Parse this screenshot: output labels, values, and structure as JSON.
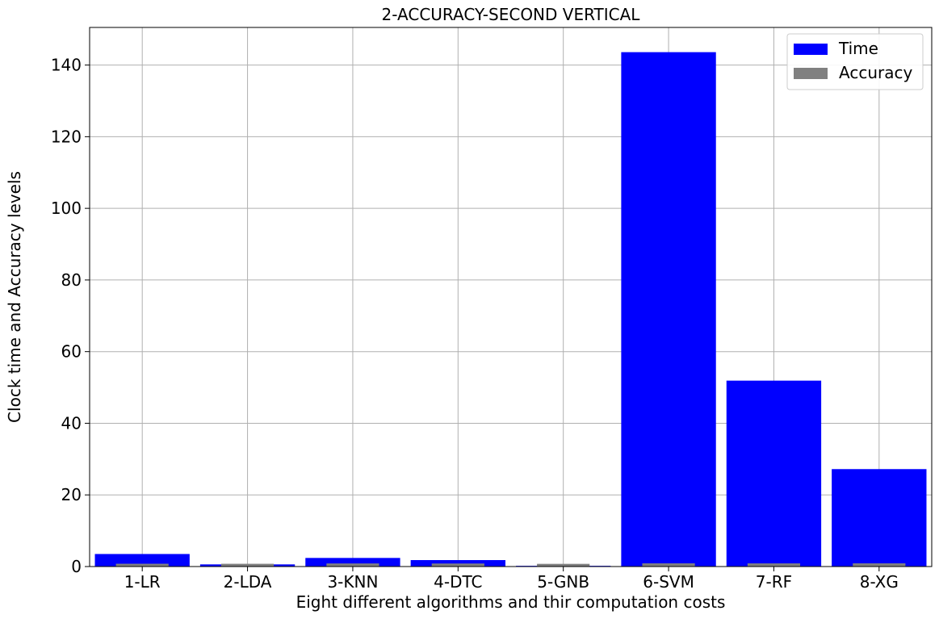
{
  "chart_data": {
    "type": "bar",
    "title": "2-ACCURACY-SECOND VERTICAL",
    "xlabel": "Eight different algorithms and thir computation costs",
    "ylabel": "Clock time and Accuracy levels",
    "categories": [
      "1-LR",
      "2-LDA",
      "3-KNN",
      "4-DTC",
      "5-GNB",
      "6-SVM",
      "7-RF",
      "8-XG"
    ],
    "series": [
      {
        "name": "Time",
        "color": "#0000ff",
        "values": [
          3.5,
          0.6,
          2.4,
          1.8,
          0.2,
          143.6,
          51.9,
          27.2
        ]
      },
      {
        "name": "Accuracy",
        "color": "#808080",
        "values": [
          0.78,
          0.77,
          0.86,
          0.84,
          0.75,
          0.89,
          0.88,
          0.89
        ]
      }
    ],
    "ylim": [
      0,
      150.5
    ],
    "yticks": [
      0,
      20,
      40,
      60,
      80,
      100,
      120,
      140
    ],
    "grid": true,
    "legend": "top-right"
  }
}
